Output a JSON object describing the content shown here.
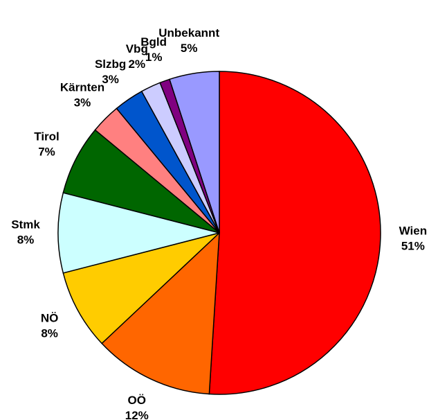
{
  "chart_data": {
    "type": "pie",
    "categories": [
      "Wien",
      "OÖ",
      "NÖ",
      "Stmk",
      "Tirol",
      "Kärnten",
      "Slzbg",
      "Vbg",
      "Bgld",
      "Unbekannt"
    ],
    "values": [
      51,
      12,
      8,
      8,
      7,
      3,
      3,
      2,
      1,
      5
    ],
    "value_labels": [
      "51%",
      "12%",
      "8%",
      "8%",
      "7%",
      "3%",
      "3%",
      "2%",
      "1%",
      "5%"
    ],
    "colors": [
      "#ff0000",
      "#ff6600",
      "#ffcc00",
      "#ccffff",
      "#006600",
      "#ff8080",
      "#0055cc",
      "#ccccff",
      "#800080",
      "#9999ff"
    ]
  }
}
